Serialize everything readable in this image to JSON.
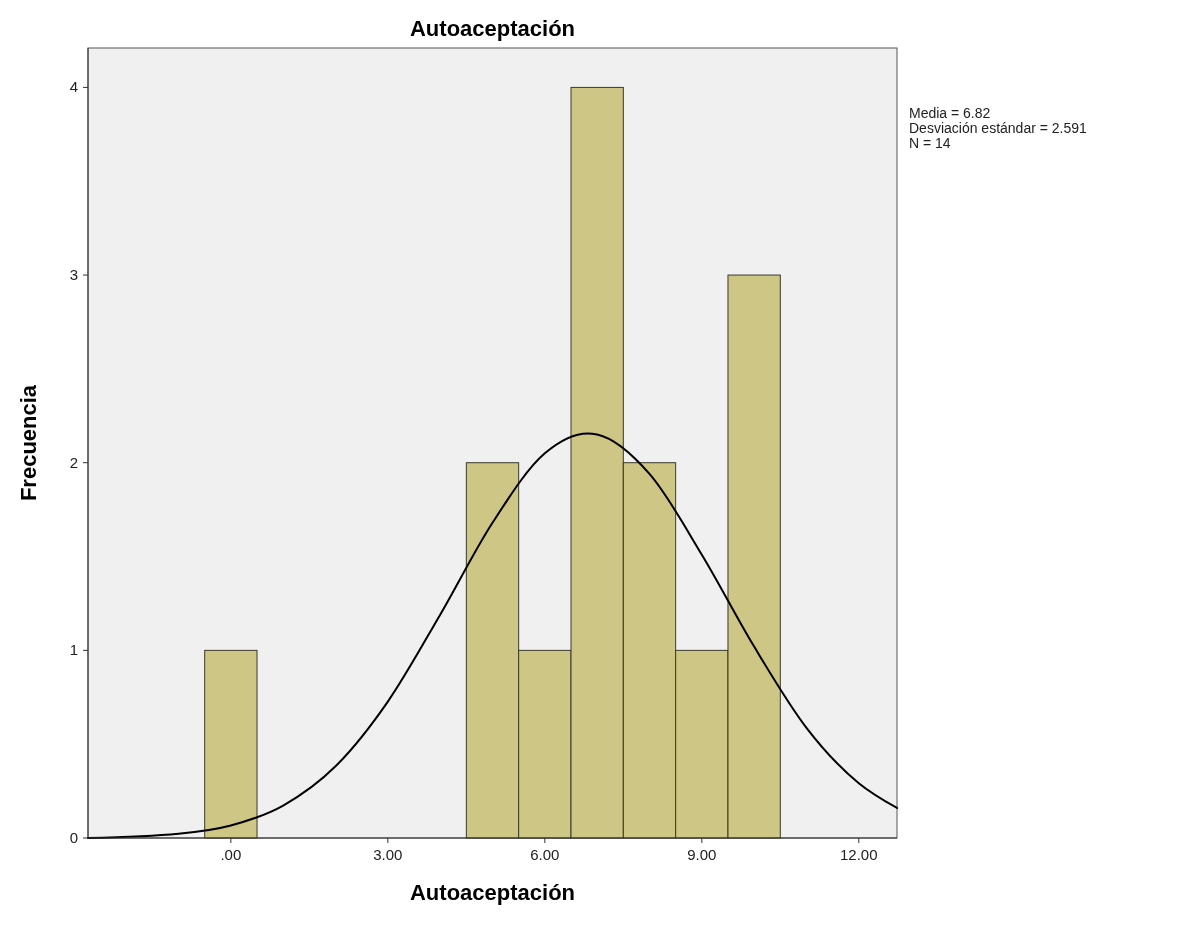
{
  "chart_data": {
    "type": "histogram",
    "title": "Autoaceptación",
    "xlabel": "Autoaceptación",
    "ylabel": "Frecuencia",
    "bins": [
      -0.5,
      0.5,
      1.5,
      2.5,
      3.5,
      4.5,
      5.5,
      6.5,
      7.5,
      8.5,
      9.5,
      10.5
    ],
    "values": [
      1,
      0,
      0,
      0,
      0,
      2,
      1,
      4,
      2,
      1,
      3
    ],
    "color": "#cdc684",
    "series": [
      {
        "type": "line",
        "color": "#000000",
        "x": [
          -2.73,
          -1,
          0,
          1,
          2,
          3,
          4,
          5,
          6,
          6.82,
          7,
          8,
          9,
          10,
          11,
          12,
          12.73
        ],
        "values": [
          0.0,
          0.023,
          0.067,
          0.173,
          0.382,
          0.727,
          1.19,
          1.68,
          2.05,
          2.156,
          2.15,
          1.94,
          1.51,
          1.02,
          0.587,
          0.292,
          0.16
        ]
      }
    ],
    "xlim": [
      -2.73,
      12.73
    ],
    "xticks": [
      {
        "value": 0,
        "label": ".00"
      },
      {
        "value": 3,
        "label": "3.00"
      },
      {
        "value": 6,
        "label": "6.00"
      },
      {
        "value": 9,
        "label": "9.00"
      },
      {
        "value": 12,
        "label": "12.00"
      }
    ],
    "ylim": [
      0,
      4.21
    ],
    "yticks": [
      0,
      1,
      2,
      3,
      4
    ],
    "grid": false,
    "annotations": [
      "Media = 6.82",
      "Desviación estándar = 2.591",
      "N = 14"
    ]
  }
}
